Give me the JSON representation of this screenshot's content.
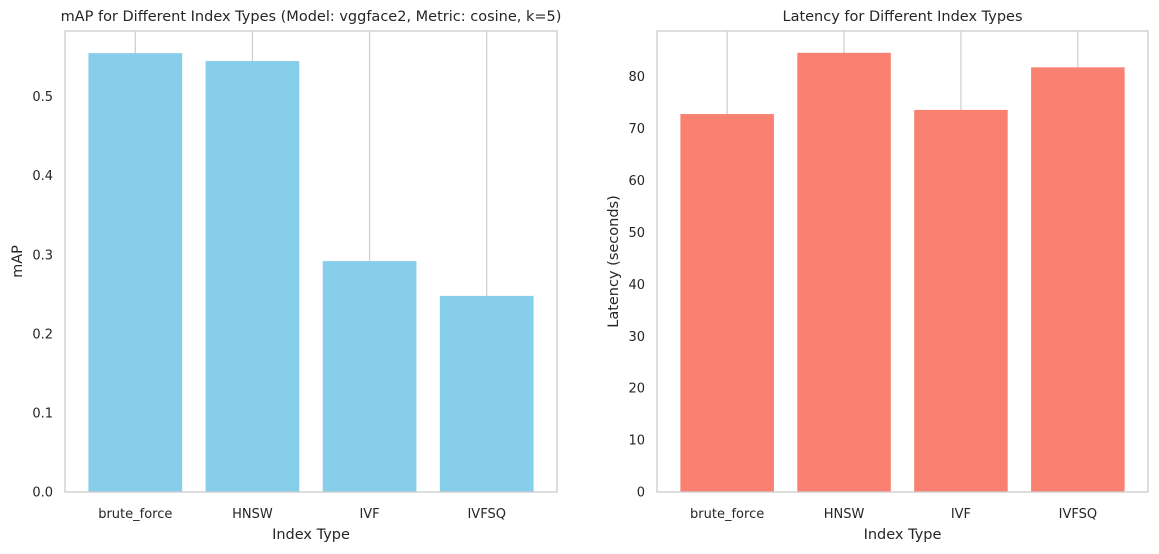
{
  "chart_data": [
    {
      "type": "bar",
      "title": "mAP for Different Index Types (Model: vggface2, Metric: cosine, k=5)",
      "xlabel": "Index Type",
      "ylabel": "mAP",
      "categories": [
        "brute_force",
        "HNSW",
        "IVF",
        "IVFSQ"
      ],
      "values": [
        0.555,
        0.545,
        0.292,
        0.248
      ],
      "ylim": [
        0,
        0.583
      ],
      "yticks": [
        0.0,
        0.1,
        0.2,
        0.3,
        0.4,
        0.5
      ],
      "ytick_labels": [
        "0.0",
        "0.1",
        "0.2",
        "0.3",
        "0.4",
        "0.5"
      ],
      "color": "#87ceeb",
      "grid": "vertical lines at categories",
      "legend": "none"
    },
    {
      "type": "bar",
      "title": "Latency for Different Index Types",
      "xlabel": "Index Type",
      "ylabel": "Latency (seconds)",
      "categories": [
        "brute_force",
        "HNSW",
        "IVF",
        "IVFSQ"
      ],
      "values": [
        72.8,
        84.6,
        73.6,
        81.8
      ],
      "ylim": [
        0,
        88.8
      ],
      "yticks": [
        0,
        10,
        20,
        30,
        40,
        50,
        60,
        70,
        80
      ],
      "ytick_labels": [
        "0",
        "10",
        "20",
        "30",
        "40",
        "50",
        "60",
        "70",
        "80"
      ],
      "color": "#fa8072",
      "grid": "vertical lines at categories",
      "legend": "none"
    }
  ]
}
